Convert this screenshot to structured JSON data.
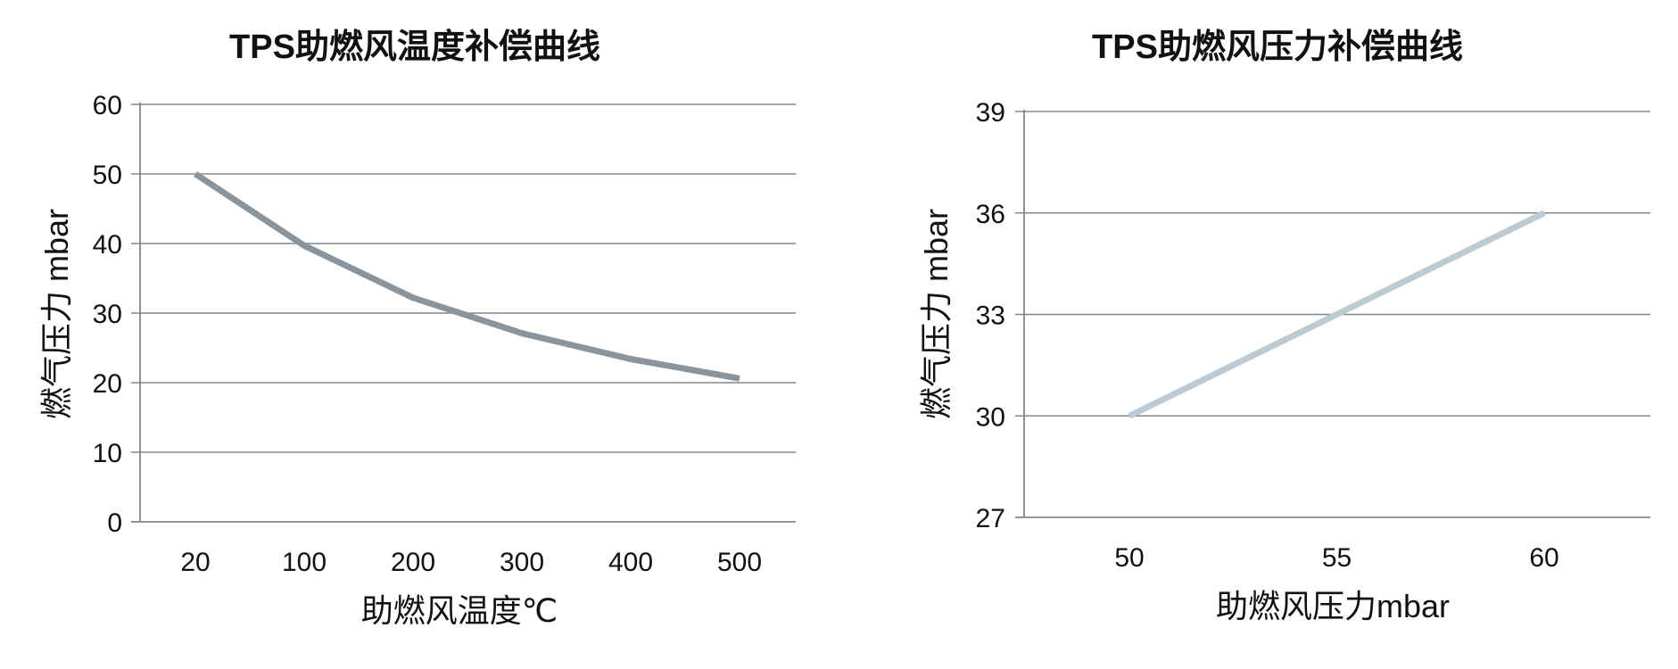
{
  "chart_data": [
    {
      "type": "line",
      "title": "TPS助燃风温度补偿曲线",
      "xlabel": "助燃风温度℃",
      "ylabel": "燃气压力 mbar",
      "categories": [
        "20",
        "100",
        "200",
        "300",
        "400",
        "500"
      ],
      "series": [
        {
          "values": [
            50,
            39.7,
            32.2,
            27.1,
            23.4,
            20.6
          ],
          "color": "#8a949d"
        }
      ],
      "ylim": [
        0,
        60
      ],
      "yticks": [
        0,
        10,
        20,
        30,
        40,
        50,
        60
      ],
      "grid": true,
      "legend": "none"
    },
    {
      "type": "line",
      "title": "TPS助燃风压力补偿曲线",
      "xlabel": "助燃风压力mbar",
      "ylabel": "燃气压力 mbar",
      "categories": [
        "50",
        "55",
        "60"
      ],
      "series": [
        {
          "values": [
            30,
            33,
            36
          ],
          "color": "#bccad4"
        }
      ],
      "ylim": [
        27,
        39
      ],
      "yticks": [
        27,
        30,
        33,
        36,
        39
      ],
      "grid": true,
      "legend": "none"
    }
  ]
}
